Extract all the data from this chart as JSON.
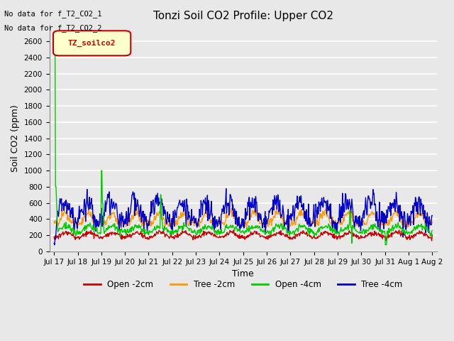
{
  "title": "Tonzi Soil CO2 Profile: Upper CO2",
  "ylabel": "Soil CO2 (ppm)",
  "xlabel": "Time",
  "annotations": [
    "No data for f_T2_CO2_1",
    "No data for f_T2_CO2_2"
  ],
  "legend_label_box": "TZ_soilco2",
  "ylim": [
    0,
    2800
  ],
  "yticks": [
    0,
    200,
    400,
    600,
    800,
    1000,
    1200,
    1400,
    1600,
    1800,
    2000,
    2200,
    2400,
    2600
  ],
  "series_colors": {
    "open_2cm": "#cc0000",
    "tree_2cm": "#ff9900",
    "open_4cm": "#00cc00",
    "tree_4cm": "#0000cc"
  },
  "legend_entries": [
    {
      "label": "Open -2cm",
      "color": "#cc0000"
    },
    {
      "label": "Tree -2cm",
      "color": "#ff9900"
    },
    {
      "label": "Open -4cm",
      "color": "#00cc00"
    },
    {
      "label": "Tree -4cm",
      "color": "#0000cc"
    }
  ],
  "background_color": "#e8e8e8",
  "plot_bg_color": "#e8e8e8",
  "grid_color": "#ffffff",
  "title_fontsize": 11,
  "axis_fontsize": 9,
  "tick_fontsize": 7.5
}
